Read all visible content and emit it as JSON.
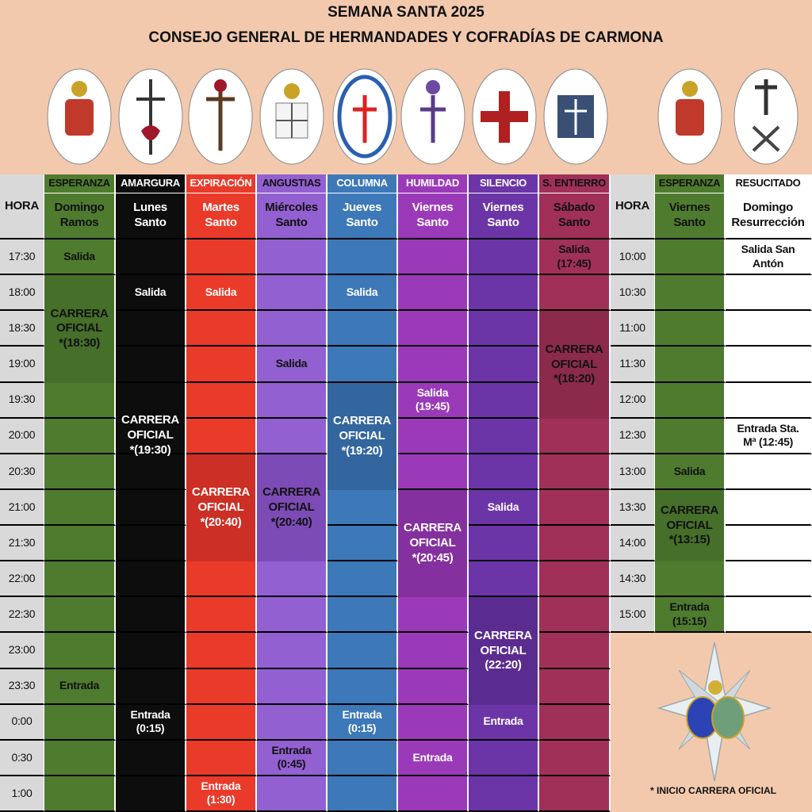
{
  "header": {
    "title": "SEMANA SANTA 2025",
    "subtitle": "CONSEJO GENERAL DE HERMANDADES Y COFRADÍAS DE CARMONA"
  },
  "table": {
    "hour_label": "HORA",
    "left": {
      "hours": [
        "17:30",
        "18:00",
        "18:30",
        "19:00",
        "19:30",
        "20:00",
        "20:30",
        "21:00",
        "21:30",
        "22:00",
        "22:30",
        "23:00",
        "23:30",
        "0:00",
        "0:30",
        "1:00"
      ],
      "columns": [
        {
          "name": "ESPERANZA",
          "day": [
            "Domingo",
            "Ramos"
          ],
          "events": [
            {
              "lines": [
                "Salida"
              ]
            },
            {
              "lines": [
                "CARRERA",
                "OFICIAL",
                "*(18:30)"
              ]
            },
            {
              "lines": [
                "Entrada"
              ]
            }
          ]
        },
        {
          "name": "AMARGURA",
          "day": [
            "Lunes",
            "Santo"
          ],
          "events": [
            {
              "lines": [
                "Salida"
              ]
            },
            {
              "lines": [
                "CARRERA",
                "OFICIAL",
                "*(19:30)"
              ]
            },
            {
              "lines": [
                "Entrada",
                "(0:15)"
              ]
            }
          ]
        },
        {
          "name": "EXPIRACIÓN",
          "day": [
            "Martes",
            "Santo"
          ],
          "events": [
            {
              "lines": [
                "Salida"
              ]
            },
            {
              "lines": [
                "CARRERA",
                "OFICIAL",
                "*(20:40)"
              ]
            },
            {
              "lines": [
                "Entrada",
                "(1:30)"
              ]
            }
          ]
        },
        {
          "name": "ANGUSTIAS",
          "day": [
            "Miércoles",
            "Santo"
          ],
          "events": [
            {
              "lines": [
                "Salida"
              ]
            },
            {
              "lines": [
                "CARRERA",
                "OFICIAL",
                "*(20:40)"
              ]
            },
            {
              "lines": [
                "Entrada",
                "(0:45)"
              ]
            }
          ]
        },
        {
          "name": "COLUMNA",
          "day": [
            "Jueves",
            "Santo"
          ],
          "events": [
            {
              "lines": [
                "Salida"
              ]
            },
            {
              "lines": [
                "CARRERA",
                "OFICIAL",
                "*(19:20)"
              ]
            },
            {
              "lines": [
                "Entrada",
                "(0:15)"
              ]
            }
          ]
        },
        {
          "name": "HUMILDAD",
          "day": [
            "Viernes",
            "Santo"
          ],
          "events": [
            {
              "lines": [
                "Salida",
                "(19:45)"
              ]
            },
            {
              "lines": [
                "CARRERA",
                "OFICIAL",
                "*(20:45)"
              ]
            },
            {
              "lines": [
                "Entrada"
              ]
            }
          ]
        },
        {
          "name": "SILENCIO",
          "day": [
            "Viernes",
            "Santo"
          ],
          "events": [
            {
              "lines": [
                "Salida"
              ]
            },
            {
              "lines": [
                "CARRERA",
                "OFICIAL",
                "(22:20)"
              ]
            },
            {
              "lines": [
                "Entrada"
              ]
            }
          ]
        },
        {
          "name": "S. ENTIERRO",
          "day": [
            "Sábado",
            "Santo"
          ],
          "events": [
            {
              "lines": [
                "Salida",
                "(17:45)"
              ]
            },
            {
              "lines": [
                "CARRERA",
                "OFICIAL",
                "*(18:20)"
              ]
            }
          ]
        }
      ]
    },
    "right": {
      "hours": [
        "10:00",
        "10:30",
        "11:00",
        "11:30",
        "12:00",
        "12:30",
        "13:00",
        "13:30",
        "14:00",
        "14:30",
        "15:00"
      ],
      "columns": [
        {
          "name": "ESPERANZA",
          "day": [
            "Viernes",
            "Santo"
          ],
          "events": [
            {
              "lines": [
                "Salida"
              ]
            },
            {
              "lines": [
                "CARRERA",
                "OFICIAL",
                "*(13:15)"
              ]
            },
            {
              "lines": [
                "Entrada",
                "(15:15)"
              ]
            }
          ]
        },
        {
          "name": "RESUCITADO",
          "day": [
            "Domingo",
            "Resurrección"
          ],
          "events": [
            {
              "lines": [
                "Salida San",
                "Antón"
              ]
            },
            {
              "lines": [
                "Entrada Sta.",
                "Mª (12:45)"
              ]
            }
          ]
        }
      ]
    }
  },
  "footnote": "* INICIO CARRERA OFICIAL"
}
